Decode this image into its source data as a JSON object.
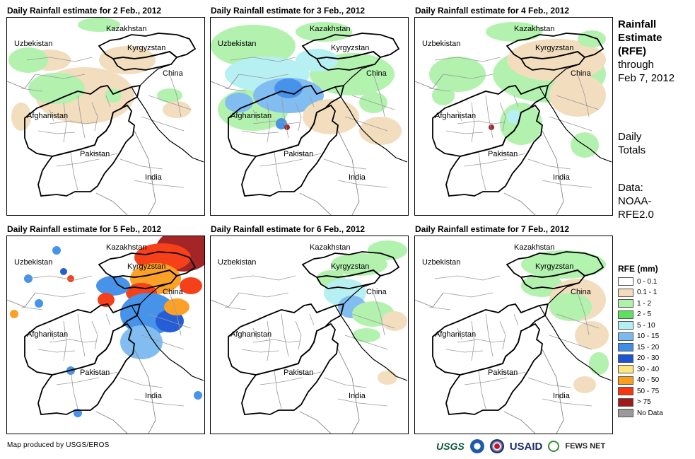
{
  "panels": [
    {
      "title": "Daily Rainfall estimate for 2 Feb., 2012",
      "day": "2 Feb., 2012"
    },
    {
      "title": "Daily Rainfall estimate for 3 Feb., 2012",
      "day": "3 Feb., 2012"
    },
    {
      "title": "Daily Rainfall estimate for 4 Feb., 2012",
      "day": "4 Feb., 2012"
    },
    {
      "title": "Daily Rainfall estimate for 5 Feb., 2012",
      "day": "5 Feb., 2012"
    },
    {
      "title": "Daily Rainfall estimate for 6 Feb., 2012",
      "day": "6 Feb., 2012"
    },
    {
      "title": "Daily Rainfall estimate for 7 Feb., 2012",
      "day": "7 Feb., 2012"
    }
  ],
  "country_labels": {
    "kazakhstan": "Kazakhstan",
    "uzbekistan": "Uzbekistan",
    "kyrgyzstan": "Kyrgyzstan",
    "china": "China",
    "afghanistan": "Afghanistan",
    "pakistan": "Pakistan",
    "india": "India"
  },
  "side": {
    "line1": "Rainfall",
    "line2": "Estimate",
    "line3": "(RFE)",
    "line4": "through",
    "line5": "Feb 7, 2012",
    "daily1": "Daily",
    "daily2": "Totals",
    "data1": "Data:",
    "data2": "NOAA-",
    "data3": "RFE2.0"
  },
  "legend": {
    "title": "RFE (mm)",
    "items": [
      {
        "label": "0 - 0.1",
        "color": "#ffffff"
      },
      {
        "label": "0.1 - 1",
        "color": "#f2dcbb"
      },
      {
        "label": "1 - 2",
        "color": "#aef2aa"
      },
      {
        "label": "2 - 5",
        "color": "#5fe160"
      },
      {
        "label": "5 - 10",
        "color": "#b3f0f3"
      },
      {
        "label": "10 - 15",
        "color": "#7bbaf0"
      },
      {
        "label": "15 - 20",
        "color": "#3d8ee8"
      },
      {
        "label": "20 - 30",
        "color": "#1a55d4"
      },
      {
        "label": "30 - 40",
        "color": "#fde580"
      },
      {
        "label": "40 - 50",
        "color": "#fc9d1c"
      },
      {
        "label": "50 - 75",
        "color": "#f5360e"
      },
      {
        "label": "> 75",
        "color": "#a01a1a"
      },
      {
        "label": "No Data",
        "color": "#9a9a9a"
      }
    ]
  },
  "credit": "Map produced by USGS/EROS",
  "logos": {
    "usgs": "USGS",
    "usaid": "USAID",
    "fews": "FEWS NET"
  }
}
